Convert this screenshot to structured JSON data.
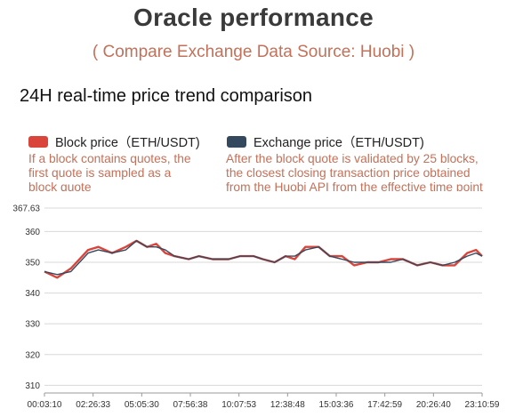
{
  "header": {
    "title": "Oracle performance",
    "subtitle": "( Compare Exchange Data Source: Huobi )",
    "section_title": "24H real-time price trend comparison"
  },
  "legend": [
    {
      "label": "Block price（ETH/USDT)",
      "color": "#d9453b",
      "description": "If a block contains quotes, the first quote is sampled as a block quote"
    },
    {
      "label": "Exchange price（ETH/USDT)",
      "color": "#34495e",
      "description": "After the block quote is validated by 25 blocks, the closest closing transaction price obtained from the Huobi API from the effective time point"
    }
  ],
  "chart_data": {
    "type": "line",
    "title": "",
    "xlabel": "",
    "ylabel": "",
    "ylim": [
      307.5,
      367.63
    ],
    "y_ticks": [
      "367.63",
      "360",
      "350",
      "340",
      "330",
      "320",
      "310"
    ],
    "x_ticks": [
      "00:03:10",
      "02:26:33",
      "05:05:30",
      "07:56:38",
      "10:07:53",
      "12:38:48",
      "15:03:36",
      "17:42:59",
      "20:26:40",
      "23:10:59"
    ],
    "grid": "horizontal",
    "x": [
      "00:03:10",
      "00:45",
      "01:30",
      "02:26:33",
      "03:00",
      "03:45",
      "04:30",
      "05:05:30",
      "05:40",
      "06:10",
      "06:40",
      "07:10",
      "07:56:38",
      "08:30",
      "09:15",
      "10:07:53",
      "10:45",
      "11:30",
      "12:00",
      "12:38:48",
      "13:15",
      "13:45",
      "14:20",
      "15:03:36",
      "15:40",
      "16:20",
      "17:00",
      "17:42:59",
      "18:20",
      "19:00",
      "19:40",
      "20:26:40",
      "21:10",
      "21:50",
      "22:30",
      "23:10:59",
      "23:40",
      "24:00"
    ],
    "series": [
      {
        "name": "Block price（ETH/USDT)",
        "values": [
          347,
          345,
          348,
          354,
          355,
          353,
          355,
          357,
          355,
          356,
          353,
          352,
          351,
          352,
          351,
          351,
          352,
          352,
          351,
          350,
          352,
          351,
          355,
          355,
          352,
          352,
          349,
          350,
          350,
          351,
          351,
          349,
          350,
          349,
          349,
          353,
          354,
          352
        ]
      },
      {
        "name": "Exchange price（ETH/USDT)",
        "values": [
          347,
          346,
          347,
          353,
          354,
          353,
          354,
          357,
          355,
          355,
          354,
          352,
          351,
          352,
          351,
          351,
          352,
          352,
          351,
          350,
          352,
          352,
          354,
          355,
          352,
          351,
          350,
          350,
          350,
          350,
          351,
          349,
          350,
          349,
          350,
          352,
          353,
          352
        ]
      }
    ]
  }
}
